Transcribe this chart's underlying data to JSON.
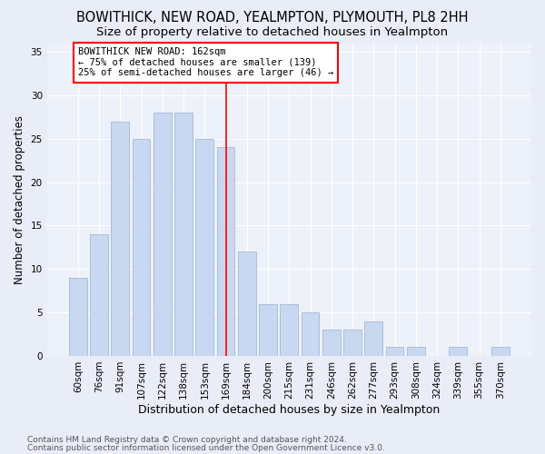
{
  "title1": "BOWITHICK, NEW ROAD, YEALMPTON, PLYMOUTH, PL8 2HH",
  "title2": "Size of property relative to detached houses in Yealmpton",
  "xlabel": "Distribution of detached houses by size in Yealmpton",
  "ylabel": "Number of detached properties",
  "categories": [
    "60sqm",
    "76sqm",
    "91sqm",
    "107sqm",
    "122sqm",
    "138sqm",
    "153sqm",
    "169sqm",
    "184sqm",
    "200sqm",
    "215sqm",
    "231sqm",
    "246sqm",
    "262sqm",
    "277sqm",
    "293sqm",
    "308sqm",
    "324sqm",
    "339sqm",
    "355sqm",
    "370sqm"
  ],
  "values": [
    9,
    14,
    27,
    25,
    28,
    28,
    25,
    24,
    12,
    6,
    6,
    5,
    3,
    3,
    4,
    1,
    1,
    0,
    1,
    0,
    1
  ],
  "bar_color": "#c8d8f0",
  "bar_edge_color": "#9ab0d0",
  "vline_x_index": 7,
  "vline_color": "red",
  "annotation_line1": "BOWITHICK NEW ROAD: 162sqm",
  "annotation_line2": "← 75% of detached houses are smaller (139)",
  "annotation_line3": "25% of semi-detached houses are larger (46) →",
  "annotation_box_color": "white",
  "annotation_box_edge_color": "red",
  "ylim": [
    0,
    36
  ],
  "yticks": [
    0,
    5,
    10,
    15,
    20,
    25,
    30,
    35
  ],
  "background_color": "#e8edf8",
  "plot_bg_color": "#edf1fa",
  "grid_color": "#ffffff",
  "footer1": "Contains HM Land Registry data © Crown copyright and database right 2024.",
  "footer2": "Contains public sector information licensed under the Open Government Licence v3.0.",
  "title1_fontsize": 10.5,
  "title2_fontsize": 9.5,
  "xlabel_fontsize": 9,
  "ylabel_fontsize": 8.5,
  "tick_fontsize": 7.5,
  "annotation_fontsize": 7.5,
  "footer_fontsize": 6.5
}
